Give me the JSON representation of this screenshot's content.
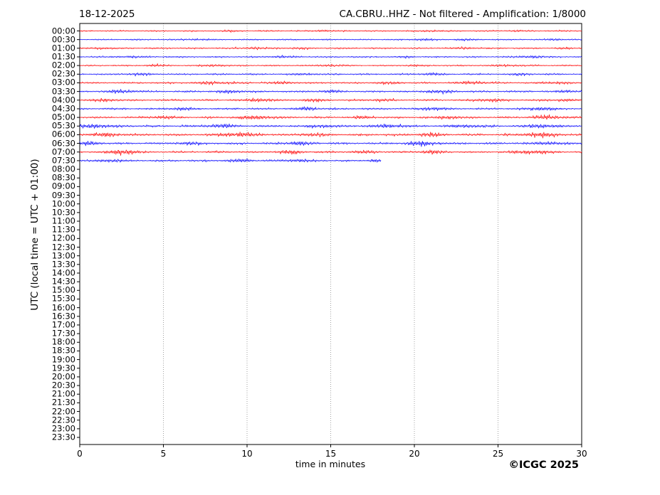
{
  "chart_data": {
    "type": "line",
    "subtype": "helicorder-seismogram",
    "date": "18-12-2025",
    "title": "CA.CBRU..HHZ - Not filtered - Amplification: 1/8000",
    "station": "CA.CBRU..HHZ",
    "filter": "Not filtered",
    "amplification": "1/8000",
    "xlabel": "time in minutes",
    "ylabel": "UTC (local time = UTC + 01:00)",
    "copyright": "©ICGC 2025",
    "xlim": [
      0,
      30
    ],
    "x_ticks": [
      0,
      5,
      10,
      15,
      20,
      25,
      30
    ],
    "grid": {
      "vertical_dotted_at": [
        5,
        10,
        15,
        20,
        25
      ],
      "color": "#999999"
    },
    "frame_color": "#000000",
    "trace_colors": {
      "hour_rows": "#ff0000",
      "half_hour_rows": "#0000ff"
    },
    "row_labels": [
      "00:00",
      "00:30",
      "01:00",
      "01:30",
      "02:00",
      "02:30",
      "03:00",
      "03:30",
      "04:00",
      "04:30",
      "05:00",
      "05:30",
      "06:00",
      "06:30",
      "07:00",
      "07:30",
      "08:00",
      "08:30",
      "09:00",
      "09:30",
      "10:00",
      "10:30",
      "11:00",
      "11:30",
      "12:00",
      "12:30",
      "13:00",
      "13:30",
      "14:00",
      "14:30",
      "15:00",
      "15:30",
      "16:00",
      "16:30",
      "17:00",
      "17:30",
      "18:00",
      "18:30",
      "19:00",
      "19:30",
      "20:00",
      "20:30",
      "21:00",
      "21:30",
      "22:00",
      "22:30",
      "23:00",
      "23:30"
    ],
    "data_rows_span": "00:00 to 07:30",
    "empty_rows_from": "08:00",
    "traces": [
      {
        "label": "00:00",
        "color": "#ff0000",
        "start_minute": 0,
        "end_minute": 30,
        "base_amplitude": 1.6,
        "seed": 11,
        "bursts": [
          [
            9,
            1.2,
            0.4
          ],
          [
            14.5,
            1.5,
            0.3
          ],
          [
            21,
            1.3,
            0.4
          ],
          [
            26,
            1.2,
            0.3
          ]
        ]
      },
      {
        "label": "00:30",
        "color": "#0000ff",
        "start_minute": 0,
        "end_minute": 30,
        "base_amplitude": 1.5,
        "seed": 22,
        "bursts": [
          [
            7,
            1.2,
            0.5
          ],
          [
            20.5,
            2.0,
            0.4
          ],
          [
            23,
            1.5,
            0.4
          ],
          [
            28.5,
            1.5,
            0.3
          ]
        ]
      },
      {
        "label": "01:00",
        "color": "#ff0000",
        "start_minute": 0,
        "end_minute": 30,
        "base_amplitude": 1.7,
        "seed": 33,
        "bursts": [
          [
            1.5,
            1.5,
            0.4
          ],
          [
            10.5,
            1.8,
            0.5
          ],
          [
            13,
            1.5,
            0.4
          ],
          [
            23,
            1.5,
            0.5
          ],
          [
            29,
            1.5,
            0.3
          ]
        ]
      },
      {
        "label": "01:30",
        "color": "#0000ff",
        "start_minute": 0,
        "end_minute": 30,
        "base_amplitude": 1.7,
        "seed": 44,
        "bursts": [
          [
            3,
            1.5,
            0.5
          ],
          [
            12,
            1.8,
            0.5
          ],
          [
            19.5,
            1.5,
            0.3
          ],
          [
            27,
            2.0,
            0.5
          ]
        ]
      },
      {
        "label": "02:00",
        "color": "#ff0000",
        "start_minute": 0,
        "end_minute": 30,
        "base_amplitude": 1.6,
        "seed": 55,
        "bursts": [
          [
            4.5,
            2.0,
            0.4
          ],
          [
            8,
            1.8,
            0.5
          ],
          [
            15,
            1.8,
            0.5
          ],
          [
            20,
            1.5,
            0.4
          ],
          [
            25.5,
            1.8,
            0.5
          ]
        ]
      },
      {
        "label": "02:30",
        "color": "#0000ff",
        "start_minute": 0,
        "end_minute": 30,
        "base_amplitude": 1.8,
        "seed": 66,
        "bursts": [
          [
            3.5,
            2.2,
            0.5
          ],
          [
            13.5,
            1.8,
            0.4
          ],
          [
            21,
            2.2,
            0.5
          ],
          [
            26.5,
            1.8,
            0.4
          ]
        ]
      },
      {
        "label": "03:00",
        "color": "#ff0000",
        "start_minute": 0,
        "end_minute": 30,
        "base_amplitude": 1.9,
        "seed": 77,
        "bursts": [
          [
            8,
            2.2,
            0.8
          ],
          [
            12,
            2.0,
            0.6
          ],
          [
            18.5,
            2.0,
            0.5
          ],
          [
            23.5,
            2.5,
            0.6
          ],
          [
            28.5,
            2.2,
            0.5
          ]
        ]
      },
      {
        "label": "03:30",
        "color": "#0000ff",
        "start_minute": 0,
        "end_minute": 30,
        "base_amplitude": 2.0,
        "seed": 88,
        "bursts": [
          [
            2.5,
            2.8,
            0.6
          ],
          [
            9,
            2.2,
            0.6
          ],
          [
            15,
            2.2,
            0.5
          ],
          [
            21.5,
            2.8,
            0.6
          ],
          [
            29,
            2.2,
            0.4
          ]
        ]
      },
      {
        "label": "04:00",
        "color": "#ff0000",
        "start_minute": 0,
        "end_minute": 30,
        "base_amplitude": 2.0,
        "seed": 99,
        "bursts": [
          [
            1.5,
            2.5,
            0.5
          ],
          [
            10.5,
            2.8,
            0.7
          ],
          [
            14,
            2.2,
            0.5
          ],
          [
            18,
            2.0,
            0.5
          ],
          [
            24.5,
            2.8,
            0.6
          ],
          [
            29,
            2.5,
            0.4
          ]
        ]
      },
      {
        "label": "04:30",
        "color": "#0000ff",
        "start_minute": 0,
        "end_minute": 30,
        "base_amplitude": 2.0,
        "seed": 110,
        "bursts": [
          [
            6,
            2.2,
            0.6
          ],
          [
            13.5,
            3.0,
            0.5
          ],
          [
            21,
            2.8,
            0.6
          ],
          [
            27.5,
            3.0,
            0.6
          ]
        ]
      },
      {
        "label": "05:00",
        "color": "#ff0000",
        "start_minute": 0,
        "end_minute": 30,
        "base_amplitude": 2.1,
        "seed": 121,
        "bursts": [
          [
            5,
            2.2,
            0.6
          ],
          [
            10.5,
            3.0,
            0.8
          ],
          [
            17,
            2.2,
            0.5
          ],
          [
            22,
            2.5,
            0.5
          ],
          [
            28,
            3.2,
            0.7
          ]
        ]
      },
      {
        "label": "05:30",
        "color": "#0000ff",
        "start_minute": 0,
        "end_minute": 30,
        "base_amplitude": 2.5,
        "seed": 132,
        "bursts": [
          [
            1,
            3.0,
            0.6
          ],
          [
            8.5,
            2.8,
            0.6
          ],
          [
            14.5,
            2.5,
            0.5
          ],
          [
            18.5,
            3.2,
            0.6
          ],
          [
            23,
            2.5,
            0.5
          ],
          [
            27.5,
            3.0,
            0.6
          ]
        ]
      },
      {
        "label": "06:00",
        "color": "#ff0000",
        "start_minute": 0,
        "end_minute": 30,
        "base_amplitude": 2.5,
        "seed": 143,
        "bursts": [
          [
            1.5,
            3.0,
            0.7
          ],
          [
            9.5,
            3.2,
            0.8
          ],
          [
            14,
            2.5,
            0.5
          ],
          [
            21,
            3.0,
            0.5
          ],
          [
            27.5,
            3.5,
            0.8
          ]
        ]
      },
      {
        "label": "06:30",
        "color": "#0000ff",
        "start_minute": 0,
        "end_minute": 30,
        "base_amplitude": 2.3,
        "seed": 154,
        "bursts": [
          [
            0.5,
            3.0,
            0.5
          ],
          [
            6.5,
            2.5,
            0.5
          ],
          [
            13,
            3.0,
            0.5
          ],
          [
            20.5,
            3.2,
            0.7
          ],
          [
            28,
            3.0,
            0.5
          ]
        ]
      },
      {
        "label": "07:00",
        "color": "#ff0000",
        "start_minute": 0,
        "end_minute": 30,
        "base_amplitude": 2.2,
        "seed": 165,
        "bursts": [
          [
            2.5,
            4.5,
            0.6
          ],
          [
            12.5,
            3.0,
            0.5
          ],
          [
            17,
            2.5,
            0.5
          ],
          [
            21,
            3.0,
            0.5
          ],
          [
            27,
            3.5,
            0.8
          ]
        ]
      },
      {
        "label": "07:30",
        "color": "#0000ff",
        "start_minute": 0,
        "end_minute": 18,
        "base_amplitude": 2.0,
        "seed": 176,
        "bursts": [
          [
            1.8,
            2.5,
            0.5
          ],
          [
            9.5,
            2.8,
            0.6
          ],
          [
            13,
            2.5,
            0.5
          ],
          [
            17.6,
            3.0,
            0.25
          ]
        ]
      }
    ]
  }
}
